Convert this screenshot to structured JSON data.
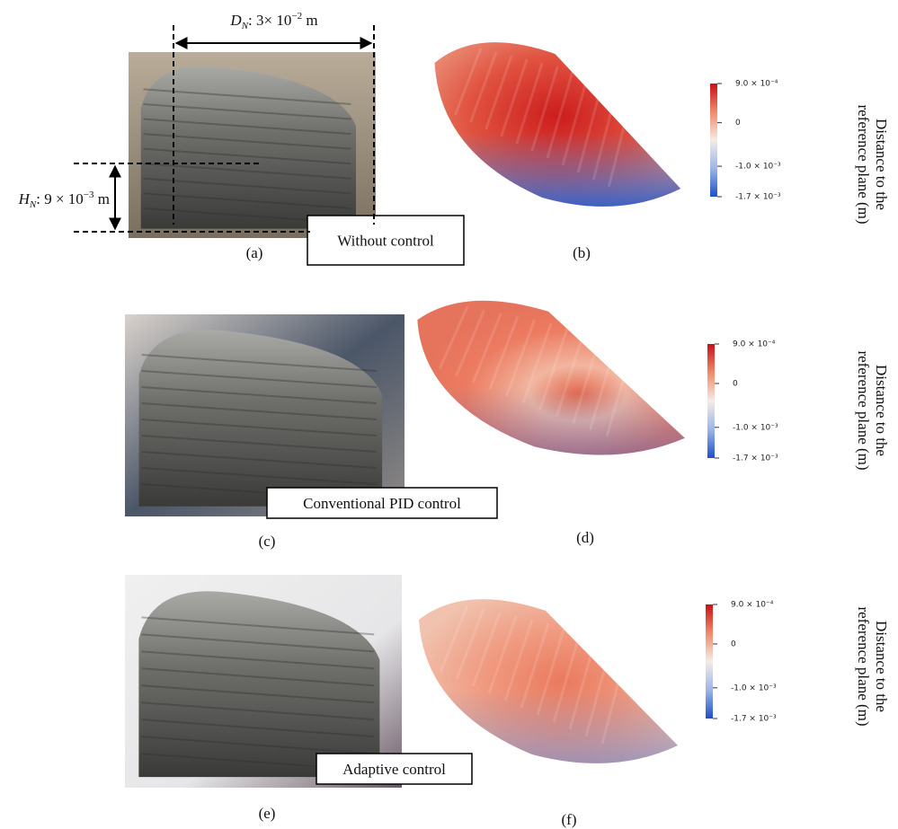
{
  "dimensions": {
    "width": {
      "symbol": "D",
      "subscript": "N",
      "value": ": 3× 10",
      "exponent": "−2",
      "unit": " m"
    },
    "height": {
      "symbol": "H",
      "subscript": "N",
      "value": ": 9 × 10",
      "exponent": "−3",
      "unit": " m"
    }
  },
  "rows": [
    {
      "photo_label": "(a)",
      "caption": "Without control",
      "map_label": "(b)",
      "colorbar": {
        "title": [
          "Distance to the",
          "reference plane (m)"
        ],
        "range": [
          -0.0017,
          0.0009
        ],
        "ticks": [
          {
            "value": 0.0009,
            "label": "9.0 × 10⁻⁴"
          },
          0,
          {
            "value": -0.001,
            "label": "-1.0 × 10⁻³"
          },
          {
            "value": -0.0017,
            "label": "-1.7 × 10⁻³"
          }
        ]
      }
    },
    {
      "photo_label": "(c)",
      "caption": "Conventional PID control",
      "map_label": "(d)",
      "colorbar": {
        "title": [
          "Distance to the",
          "reference plane (m)"
        ],
        "range": [
          -0.0017,
          0.0009
        ],
        "ticks": [
          {
            "value": 0.0009,
            "label": "9.0 × 10⁻⁴"
          },
          0,
          {
            "value": -0.001,
            "label": "-1.0 × 10⁻³"
          },
          {
            "value": -0.0017,
            "label": "-1.7 × 10⁻³"
          }
        ]
      }
    },
    {
      "photo_label": "(e)",
      "caption": "Adaptive control",
      "map_label": "(f)",
      "colorbar": {
        "title": [
          "Distance to the",
          "reference plane (m)"
        ],
        "range": [
          -0.0017,
          0.0009
        ],
        "ticks": [
          {
            "value": 0.0009,
            "label": "9.0 × 10⁻⁴"
          },
          0,
          {
            "value": -0.001,
            "label": "-1.0 × 10⁻³"
          },
          {
            "value": -0.0017,
            "label": "-1.7 × 10⁻³"
          }
        ]
      }
    }
  ]
}
